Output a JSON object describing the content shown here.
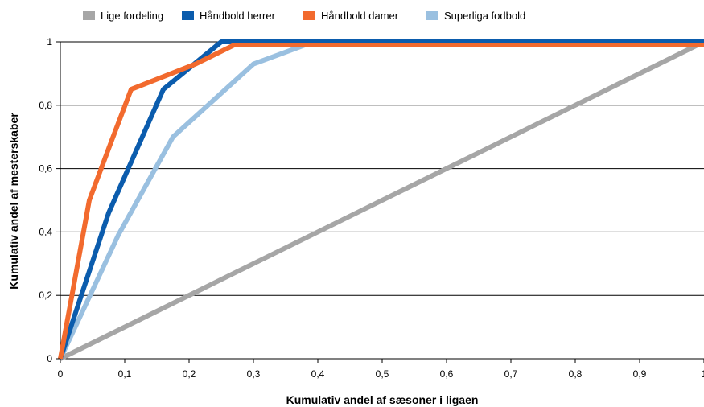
{
  "chart_data": {
    "type": "line",
    "xlabel": "Kumulativ andel af sæsoner i ligaen",
    "ylabel": "Kumulativ andel af mesterskaber",
    "xlim": [
      0,
      1
    ],
    "ylim": [
      0,
      1
    ],
    "xticks": [
      "0",
      "0,1",
      "0,2",
      "0,3",
      "0,4",
      "0,5",
      "0,6",
      "0,7",
      "0,8",
      "0,9",
      "1"
    ],
    "yticks": [
      "0",
      "0,2",
      "0,4",
      "0,6",
      "0,8",
      "1"
    ],
    "grid": "horizontal",
    "legend_position": "top",
    "series": [
      {
        "name": "Lige fordeling",
        "color": "#a6a6a6",
        "x": [
          0,
          1
        ],
        "y": [
          0,
          1
        ]
      },
      {
        "name": "Håndbold herrer",
        "color": "#0b5cad",
        "x": [
          0,
          0.075,
          0.16,
          0.25,
          0.27,
          1
        ],
        "y": [
          0,
          0.46,
          0.85,
          1,
          1,
          1
        ]
      },
      {
        "name": "Håndbold damer",
        "color": "#f26a2e",
        "x": [
          0,
          0.045,
          0.08,
          0.11,
          0.21,
          0.27,
          0.37,
          1
        ],
        "y": [
          0,
          0.5,
          0.69,
          0.85,
          0.93,
          0.99,
          0.99,
          0.99
        ]
      },
      {
        "name": "Superliga fodbold",
        "color": "#9ac0e0",
        "x": [
          0,
          0.09,
          0.175,
          0.3,
          0.38,
          1
        ],
        "y": [
          0,
          0.39,
          0.7,
          0.93,
          0.99,
          0.99
        ]
      }
    ]
  }
}
